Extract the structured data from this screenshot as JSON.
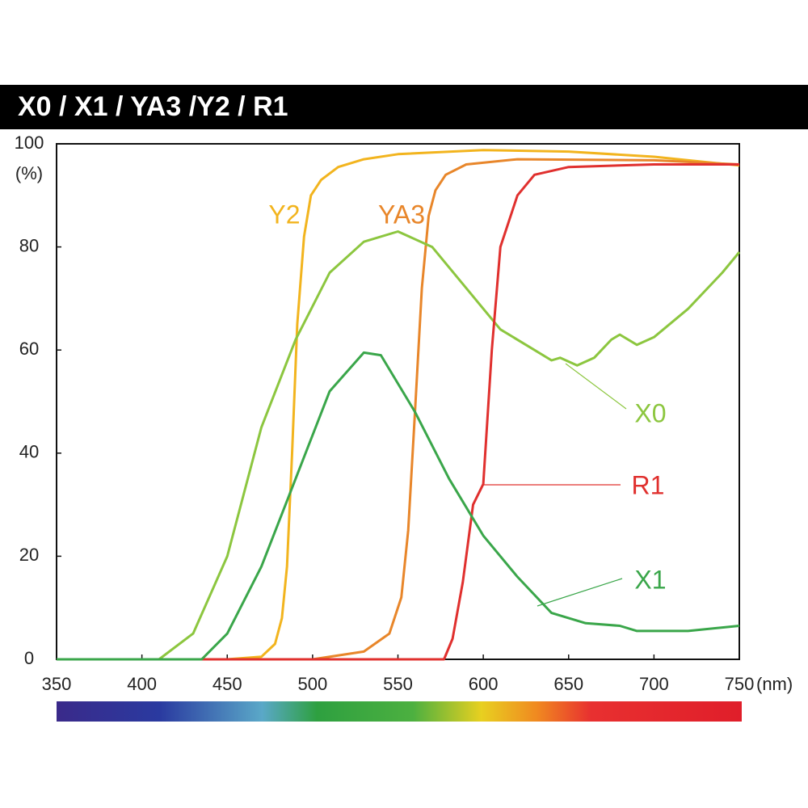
{
  "chart_data": {
    "type": "line",
    "title": "X0 / X1 / YA3 /Y2 / R1",
    "x_label": "(nm)",
    "y_label": "(%)",
    "xlim": [
      350,
      750
    ],
    "ylim": [
      0,
      100
    ],
    "xticks": [
      350,
      400,
      450,
      500,
      550,
      600,
      650,
      700,
      750
    ],
    "yticks": [
      0,
      20,
      40,
      60,
      80,
      100
    ],
    "series": [
      {
        "name": "Y2",
        "color": "#f2b41e",
        "x": [
          350,
          450,
          470,
          478,
          482,
          485,
          488,
          491,
          495,
          499,
          505,
          515,
          530,
          550,
          600,
          650,
          700,
          750
        ],
        "values": [
          0,
          0,
          0.5,
          3,
          8,
          18,
          40,
          65,
          82,
          90,
          93,
          95.5,
          97,
          98,
          98.8,
          98.5,
          97.5,
          95.8
        ]
      },
      {
        "name": "YA3",
        "color": "#e8862a",
        "x": [
          350,
          500,
          530,
          545,
          552,
          556,
          560,
          564,
          568,
          572,
          578,
          590,
          620,
          700,
          750
        ],
        "values": [
          0,
          0,
          1.5,
          5,
          12,
          25,
          48,
          72,
          86,
          91,
          94,
          96,
          97,
          96.8,
          96
        ]
      },
      {
        "name": "X0",
        "color": "#8cc63f",
        "x": [
          350,
          410,
          430,
          450,
          470,
          490,
          510,
          530,
          550,
          570,
          590,
          610,
          630,
          640,
          645,
          655,
          665,
          675,
          680,
          690,
          700,
          720,
          740,
          750
        ],
        "values": [
          0,
          0,
          5,
          20,
          45,
          62,
          75,
          81,
          83,
          80,
          72,
          64,
          60,
          58,
          58.5,
          57,
          58.5,
          62,
          63,
          61,
          62.5,
          68,
          75,
          79
        ]
      },
      {
        "name": "R1",
        "color": "#e0302e",
        "x": [
          350,
          577,
          582,
          588,
          594,
          600,
          605,
          610,
          620,
          630,
          650,
          700,
          750
        ],
        "values": [
          0,
          0,
          4,
          15,
          30,
          34,
          60,
          80,
          90,
          94,
          95.5,
          96,
          96
        ]
      },
      {
        "name": "X1",
        "color": "#3aa64a",
        "x": [
          350,
          435,
          450,
          470,
          490,
          510,
          530,
          540,
          560,
          580,
          600,
          620,
          640,
          660,
          680,
          690,
          720,
          750
        ],
        "values": [
          0,
          0,
          5,
          18,
          35,
          52,
          59.5,
          59,
          48,
          35,
          24,
          16,
          9,
          7,
          6.5,
          5.5,
          5.5,
          6.5
        ]
      }
    ]
  }
}
